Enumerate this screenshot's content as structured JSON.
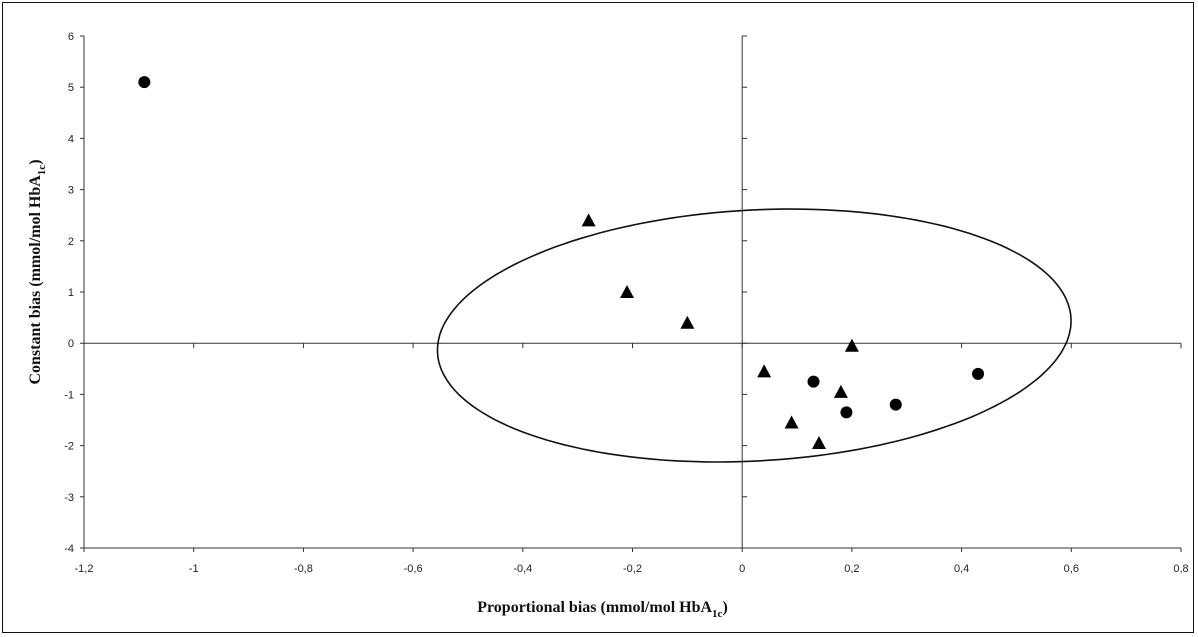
{
  "chart_data": {
    "type": "scatter",
    "xlabel_main": "Proportional bias (mmol/mol HbA",
    "xlabel_sub": "1c",
    "xlabel_end": ")",
    "ylabel_main": "Constant bias (mmol/mol HbA",
    "ylabel_sub": "1c",
    "ylabel_end": ")",
    "xlim": [
      -1.2,
      0.8
    ],
    "ylim": [
      -4,
      6
    ],
    "x_ticks": [
      -1.2,
      -1,
      -0.8,
      -0.6,
      -0.4,
      -0.2,
      0,
      0.2,
      0.4,
      0.6,
      0.8
    ],
    "x_tick_labels": [
      "-1,2",
      "-1",
      "-0,8",
      "-0,6",
      "-0,4",
      "-0,2",
      "0",
      "0,2",
      "0,4",
      "0,6",
      "0,8"
    ],
    "y_ticks": [
      -4,
      -3,
      -2,
      -1,
      0,
      1,
      2,
      3,
      4,
      5,
      6
    ],
    "y_tick_labels": [
      "-4",
      "-3",
      "-2",
      "-1",
      "0",
      "1",
      "2",
      "3",
      "4",
      "5",
      "6"
    ],
    "grid": false,
    "series": [
      {
        "marker": "circle",
        "points": [
          {
            "x": -1.09,
            "y": 5.1
          },
          {
            "x": 0.13,
            "y": -0.75
          },
          {
            "x": 0.19,
            "y": -1.35
          },
          {
            "x": 0.28,
            "y": -1.2
          },
          {
            "x": 0.43,
            "y": -0.6
          }
        ]
      },
      {
        "marker": "triangle",
        "points": [
          {
            "x": -0.28,
            "y": 2.4
          },
          {
            "x": -0.21,
            "y": 1.0
          },
          {
            "x": -0.1,
            "y": 0.4
          },
          {
            "x": 0.04,
            "y": -0.55
          },
          {
            "x": 0.09,
            "y": -1.55
          },
          {
            "x": 0.14,
            "y": -1.95
          },
          {
            "x": 0.18,
            "y": -0.95
          },
          {
            "x": 0.2,
            "y": -0.05
          }
        ]
      }
    ],
    "ellipse": {
      "center_x": 0.022,
      "center_y": 0.15,
      "rx": 0.5869,
      "ry": 2.4143,
      "rotation_deg": 18.2
    },
    "colors": {
      "marker": "#000000",
      "axis": "#333333"
    }
  }
}
